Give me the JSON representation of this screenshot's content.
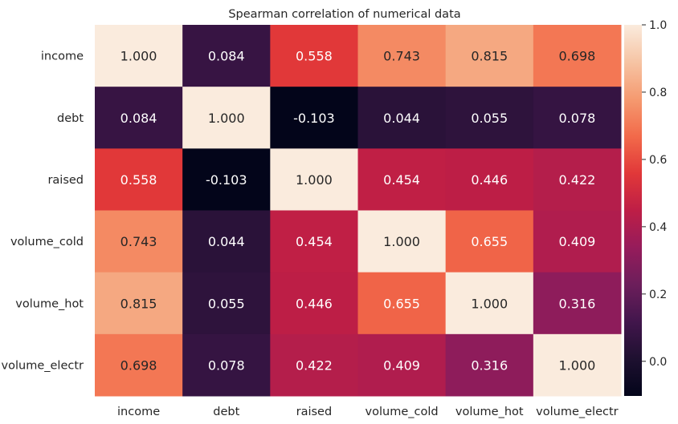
{
  "chart_data": {
    "type": "heatmap",
    "title": "Spearman correlation of numerical data",
    "rows": [
      "income",
      "debt",
      "raised",
      "volume_cold",
      "volume_hot",
      "volume_electr"
    ],
    "columns": [
      "income",
      "debt",
      "raised",
      "volume_cold",
      "volume_hot",
      "volume_electr"
    ],
    "values": [
      [
        1.0,
        0.084,
        0.558,
        0.743,
        0.815,
        0.698
      ],
      [
        0.084,
        1.0,
        -0.103,
        0.044,
        0.055,
        0.078
      ],
      [
        0.558,
        -0.103,
        1.0,
        0.454,
        0.446,
        0.422
      ],
      [
        0.743,
        0.044,
        0.454,
        1.0,
        0.655,
        0.409
      ],
      [
        0.815,
        0.055,
        0.446,
        0.655,
        1.0,
        0.316
      ],
      [
        0.698,
        0.078,
        0.422,
        0.409,
        0.316,
        1.0
      ]
    ],
    "value_format": "3 decimals",
    "colormap": "rocket",
    "colorbar": {
      "vmin": -0.103,
      "vmax": 1.0,
      "ticks": [
        0.0,
        0.2,
        0.4,
        0.6,
        0.8,
        1.0
      ],
      "tick_labels": [
        "0.0",
        "0.2",
        "0.4",
        "0.6",
        "0.8",
        "1.0"
      ],
      "placement": "right"
    },
    "grid": false
  }
}
